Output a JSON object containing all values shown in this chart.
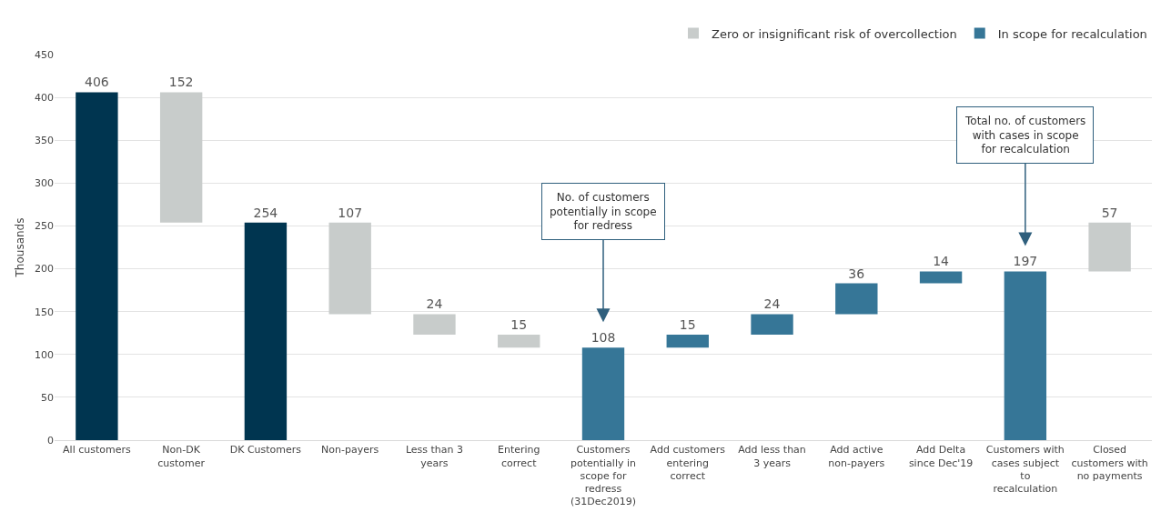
{
  "chart_data": {
    "type": "bar",
    "ylabel": "Thousands",
    "categories": [
      "All customers",
      "Non-DK customer",
      "DK Customers",
      "Non-payers",
      "Less than 3 years",
      "Entering correct",
      "Customers potentially in scope for redress (31Dec2019)",
      "Add customers entering correct",
      "Add less than 3 years",
      "Add active non-payers",
      "Add Delta since Dec'19",
      "Customers with cases subject to recalculation",
      "Closed customers with no payments"
    ],
    "series": [
      {
        "color": "#003550",
        "base": [
          0,
          null,
          0,
          null,
          null,
          null,
          null,
          null,
          null,
          null,
          null,
          null,
          null
        ],
        "values": [
          406,
          null,
          254,
          null,
          null,
          null,
          null,
          null,
          null,
          null,
          null,
          null,
          null
        ]
      },
      {
        "name": "Zero or insignificant risk of overcollection",
        "color": "#c8cccb",
        "base": [
          null,
          254,
          null,
          147,
          123,
          108,
          null,
          null,
          null,
          null,
          null,
          null,
          197
        ],
        "values": [
          null,
          152,
          null,
          107,
          24,
          15,
          null,
          null,
          null,
          null,
          null,
          null,
          57
        ]
      },
      {
        "name": "In scope for recalculation",
        "color": "#367697",
        "base": [
          null,
          null,
          null,
          null,
          null,
          null,
          0,
          108,
          123,
          147,
          183,
          0,
          null
        ],
        "values": [
          null,
          null,
          null,
          null,
          null,
          null,
          108,
          15,
          24,
          36,
          14,
          197,
          null
        ]
      }
    ],
    "ylim": [
      0,
      450
    ],
    "yticks": [
      0,
      50,
      100,
      150,
      200,
      250,
      300,
      350,
      400,
      450
    ],
    "grid": "y",
    "legend": "top right",
    "data_labels": true,
    "annotations": [
      {
        "text": "No. of customers potentially in scope for redress",
        "x": "Customers potentially in scope for redress (31Dec2019)",
        "y": 108
      },
      {
        "text": "Total no. of customers with cases in scope for recalculation",
        "x": "Customers with cases subject to recalculation",
        "y": 197
      }
    ]
  }
}
